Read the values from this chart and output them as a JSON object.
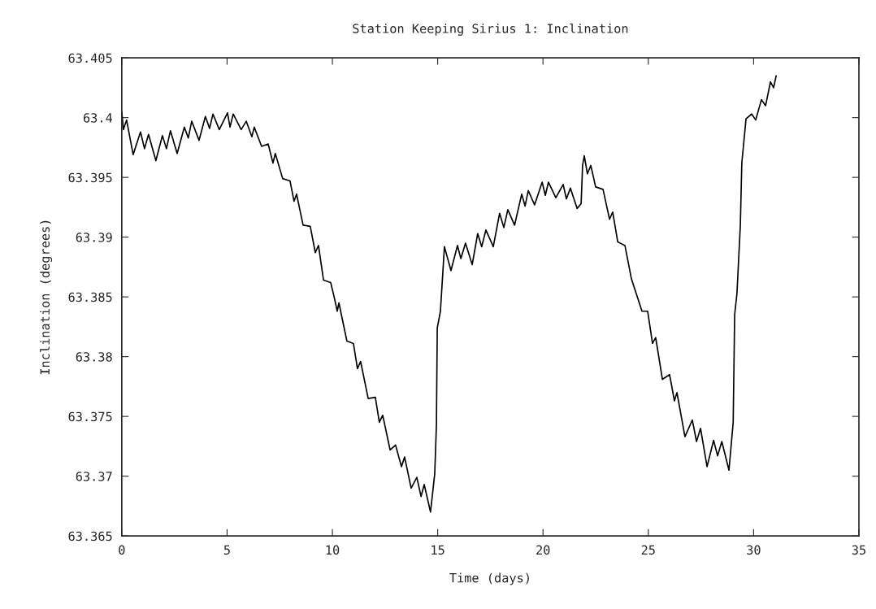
{
  "chart_data": {
    "type": "line",
    "title": "Station Keeping Sirius 1: Inclination",
    "xlabel": "Time (days)",
    "ylabel": "Inclination (degrees)",
    "xlim": [
      0,
      35
    ],
    "xticks": [
      0,
      5,
      10,
      15,
      20,
      25,
      30,
      35
    ],
    "ylim": [
      63.365,
      63.405
    ],
    "yticks": [
      63.365,
      63.37,
      63.375,
      63.38,
      63.385,
      63.39,
      63.395,
      63.4,
      63.405
    ],
    "grid": false,
    "marker": "none",
    "line_style": "solid",
    "series": [
      {
        "color": "#000000",
        "x": [
          0,
          0.08,
          0.23,
          0.54,
          0.89,
          1.08,
          1.27,
          1.62,
          1.93,
          2.12,
          2.31,
          2.63,
          2.97,
          3.16,
          3.32,
          3.67,
          3.97,
          4.17,
          4.33,
          4.63,
          5.02,
          5.14,
          5.29,
          5.67,
          5.91,
          6.18,
          6.29,
          6.64,
          6.95,
          7.18,
          7.29,
          7.64,
          7.99,
          8.18,
          8.3,
          8.61,
          8.95,
          9.19,
          9.34,
          9.58,
          9.92,
          10.11,
          10.23,
          10.31,
          10.69,
          11.0,
          11.19,
          11.34,
          11.7,
          12.04,
          12.23,
          12.39,
          12.74,
          13.0,
          13.28,
          13.43,
          13.74,
          14.01,
          14.21,
          14.36,
          14.66,
          14.86,
          14.94,
          14.98,
          15.13,
          15.25,
          15.32,
          15.63,
          15.94,
          16.1,
          16.32,
          16.64,
          16.9,
          17.09,
          17.29,
          17.64,
          17.94,
          18.14,
          18.33,
          18.65,
          18.99,
          19.15,
          19.3,
          19.6,
          19.96,
          20.11,
          20.26,
          20.61,
          20.96,
          21.11,
          21.3,
          21.62,
          21.81,
          21.88,
          21.96,
          22.11,
          22.27,
          22.5,
          22.85,
          23.16,
          23.31,
          23.55,
          23.89,
          24.2,
          24.7,
          24.97,
          25.2,
          25.35,
          25.67,
          26.01,
          26.24,
          26.36,
          26.74,
          27.09,
          27.29,
          27.48,
          27.79,
          28.1,
          28.29,
          28.49,
          28.83,
          29.03,
          29.1,
          29.21,
          29.37,
          29.44,
          29.64,
          29.91,
          30.1,
          30.37,
          30.57,
          30.8,
          30.95,
          31.07
        ],
        "values": [
          63.4005,
          63.399,
          63.3998,
          63.3969,
          63.3988,
          63.3974,
          63.3986,
          63.3964,
          63.3985,
          63.3974,
          63.3989,
          63.397,
          63.3992,
          63.3983,
          63.3997,
          63.3981,
          63.4001,
          63.3991,
          63.4003,
          63.399,
          63.4004,
          63.3992,
          63.4003,
          63.399,
          63.3997,
          63.3984,
          63.3992,
          63.3976,
          63.3978,
          63.3962,
          63.397,
          63.3949,
          63.3947,
          63.393,
          63.3936,
          63.391,
          63.3909,
          63.3887,
          63.3893,
          63.3864,
          63.3862,
          63.3848,
          63.3838,
          63.3845,
          63.3813,
          63.3811,
          63.379,
          63.3796,
          63.3765,
          63.3766,
          63.3745,
          63.3751,
          63.3722,
          63.3726,
          63.3708,
          63.3716,
          63.369,
          63.3699,
          63.3683,
          63.3693,
          63.367,
          63.3702,
          63.3743,
          63.3824,
          63.3838,
          63.3872,
          63.3892,
          63.3872,
          63.3893,
          63.3882,
          63.3895,
          63.3877,
          63.3903,
          63.3892,
          63.3906,
          63.3892,
          63.392,
          63.3908,
          63.3923,
          63.391,
          63.3936,
          63.3926,
          63.3939,
          63.3927,
          63.3946,
          63.3935,
          63.3946,
          63.3933,
          63.3944,
          63.3932,
          63.3941,
          63.3924,
          63.3928,
          63.396,
          63.3968,
          63.3953,
          63.396,
          63.3942,
          63.394,
          63.3915,
          63.3921,
          63.3896,
          63.3893,
          63.3865,
          63.3838,
          63.3838,
          63.3811,
          63.3816,
          63.3781,
          63.3785,
          63.3763,
          63.377,
          63.3733,
          63.3747,
          63.3729,
          63.374,
          63.3708,
          63.373,
          63.3717,
          63.3729,
          63.3705,
          63.3745,
          63.3835,
          63.3853,
          63.391,
          63.3962,
          63.3999,
          63.4003,
          63.3998,
          63.4015,
          63.401,
          63.403,
          63.4025,
          63.4035
        ]
      }
    ]
  }
}
